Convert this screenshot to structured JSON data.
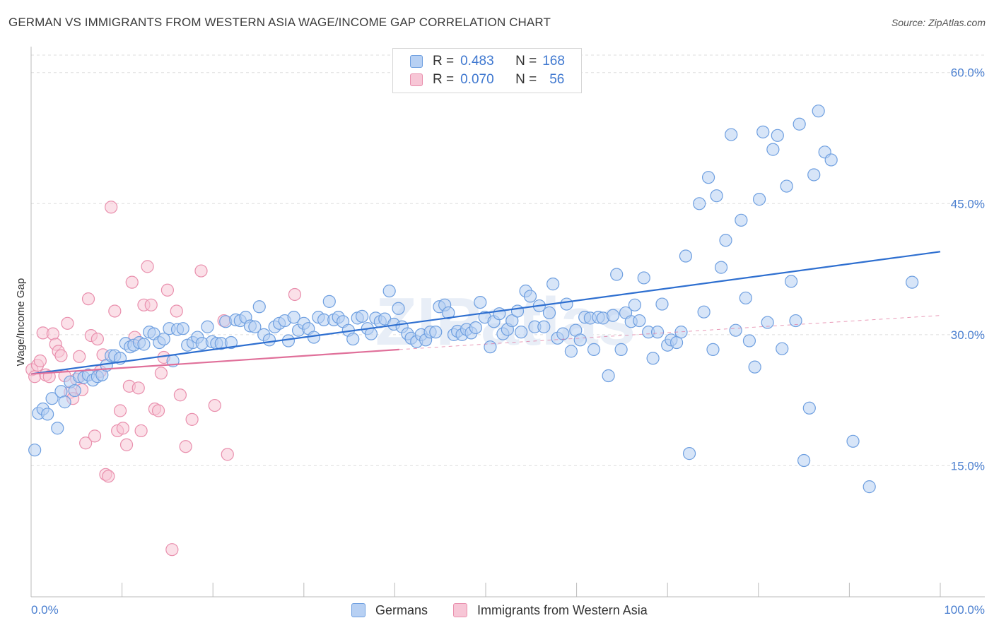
{
  "title": "GERMAN VS IMMIGRANTS FROM WESTERN ASIA WAGE/INCOME GAP CORRELATION CHART",
  "source": "Source: ZipAtlas.com",
  "watermark": "ZIPatlas",
  "legend": {
    "rows": [
      {
        "r_label": "R =",
        "r_value": "0.483",
        "n_label": "N =",
        "n_value": "168"
      },
      {
        "r_label": "R =",
        "r_value": "0.070",
        "n_label": "N =",
        "n_value": "56"
      }
    ]
  },
  "bottom_legend": [
    "Germans",
    "Immigrants from Western Asia"
  ],
  "colors": {
    "blue_fill": "#b7d0f3",
    "blue_stroke": "#6e9fe0",
    "blue_line": "#2e6fd0",
    "pink_fill": "#f7c6d6",
    "pink_stroke": "#e98fad",
    "pink_line": "#e0709a",
    "grid": "#dddddd",
    "tick_text": "#4a7fd0"
  },
  "chart_data": {
    "type": "scatter",
    "title": "GERMAN VS IMMIGRANTS FROM WESTERN ASIA WAGE/INCOME GAP CORRELATION CHART",
    "xlabel": "",
    "ylabel": "Wage/Income Gap",
    "xlim": [
      0,
      100
    ],
    "ylim": [
      0,
      62
    ],
    "x_tick_labels": [
      "0.0%",
      "100.0%"
    ],
    "y_ticks": [
      15,
      30,
      45,
      60
    ],
    "y_tick_labels": [
      "15.0%",
      "30.0%",
      "45.0%",
      "60.0%"
    ],
    "grid": true,
    "legend_position": "top-center",
    "series": [
      {
        "name": "Germans",
        "r": 0.483,
        "n": 168,
        "trend": {
          "x": [
            0,
            100
          ],
          "y": [
            25.5,
            39.5
          ],
          "style": "solid"
        },
        "points": [
          [
            0.4,
            16.8
          ],
          [
            0.8,
            21.0
          ],
          [
            1.3,
            21.5
          ],
          [
            1.8,
            20.9
          ],
          [
            2.3,
            22.7
          ],
          [
            2.9,
            19.3
          ],
          [
            3.3,
            23.5
          ],
          [
            3.7,
            22.3
          ],
          [
            4.3,
            24.6
          ],
          [
            4.8,
            23.6
          ],
          [
            5.3,
            25.2
          ],
          [
            5.8,
            25.1
          ],
          [
            6.3,
            25.4
          ],
          [
            6.8,
            24.8
          ],
          [
            7.3,
            25.2
          ],
          [
            7.8,
            25.4
          ],
          [
            8.3,
            26.5
          ],
          [
            8.8,
            27.6
          ],
          [
            9.2,
            27.6
          ],
          [
            9.8,
            27.3
          ],
          [
            10.4,
            29.0
          ],
          [
            10.9,
            28.6
          ],
          [
            11.3,
            28.8
          ],
          [
            11.9,
            29.1
          ],
          [
            12.4,
            28.9
          ],
          [
            13.0,
            30.3
          ],
          [
            13.5,
            30.1
          ],
          [
            14.1,
            29.1
          ],
          [
            14.6,
            29.5
          ],
          [
            15.2,
            30.7
          ],
          [
            15.6,
            27.0
          ],
          [
            16.1,
            30.6
          ],
          [
            16.7,
            30.7
          ],
          [
            17.2,
            28.8
          ],
          [
            17.8,
            29.1
          ],
          [
            18.3,
            29.7
          ],
          [
            18.8,
            29.0
          ],
          [
            19.4,
            30.9
          ],
          [
            19.9,
            29.2
          ],
          [
            20.4,
            29.0
          ],
          [
            20.9,
            29.0
          ],
          [
            21.4,
            31.5
          ],
          [
            22.0,
            29.1
          ],
          [
            22.5,
            31.7
          ],
          [
            23.0,
            31.6
          ],
          [
            23.6,
            32.0
          ],
          [
            24.1,
            31.0
          ],
          [
            24.6,
            30.9
          ],
          [
            25.1,
            33.2
          ],
          [
            25.6,
            30.0
          ],
          [
            26.2,
            29.4
          ],
          [
            26.8,
            30.9
          ],
          [
            27.3,
            31.3
          ],
          [
            27.9,
            31.6
          ],
          [
            28.3,
            29.3
          ],
          [
            28.9,
            32.0
          ],
          [
            29.4,
            30.5
          ],
          [
            30.0,
            31.3
          ],
          [
            30.5,
            30.7
          ],
          [
            31.1,
            29.7
          ],
          [
            31.6,
            32.0
          ],
          [
            32.2,
            31.7
          ],
          [
            32.8,
            33.8
          ],
          [
            33.3,
            31.7
          ],
          [
            33.8,
            32.0
          ],
          [
            34.3,
            31.5
          ],
          [
            34.9,
            30.5
          ],
          [
            35.4,
            29.5
          ],
          [
            35.9,
            31.9
          ],
          [
            36.4,
            32.1
          ],
          [
            37.0,
            30.7
          ],
          [
            37.4,
            30.1
          ],
          [
            37.9,
            31.9
          ],
          [
            38.4,
            31.5
          ],
          [
            38.9,
            31.8
          ],
          [
            39.4,
            35.0
          ],
          [
            39.9,
            31.2
          ],
          [
            40.4,
            33.0
          ],
          [
            40.8,
            30.9
          ],
          [
            41.4,
            30.1
          ],
          [
            41.8,
            29.6
          ],
          [
            42.4,
            29.2
          ],
          [
            42.9,
            30.0
          ],
          [
            43.4,
            29.4
          ],
          [
            43.9,
            30.3
          ],
          [
            44.5,
            30.3
          ],
          [
            44.9,
            33.2
          ],
          [
            45.5,
            33.4
          ],
          [
            45.9,
            32.5
          ],
          [
            46.5,
            30.0
          ],
          [
            46.9,
            30.4
          ],
          [
            47.4,
            30.0
          ],
          [
            47.9,
            30.6
          ],
          [
            48.4,
            30.2
          ],
          [
            48.9,
            30.8
          ],
          [
            49.4,
            33.7
          ],
          [
            49.9,
            32.0
          ],
          [
            50.5,
            28.6
          ],
          [
            50.9,
            31.5
          ],
          [
            51.5,
            32.4
          ],
          [
            51.9,
            30.1
          ],
          [
            52.4,
            30.6
          ],
          [
            52.9,
            31.6
          ],
          [
            53.5,
            32.7
          ],
          [
            53.9,
            30.3
          ],
          [
            54.4,
            35.0
          ],
          [
            54.9,
            34.4
          ],
          [
            55.4,
            30.9
          ],
          [
            55.9,
            33.3
          ],
          [
            56.4,
            30.9
          ],
          [
            57.0,
            32.5
          ],
          [
            57.4,
            35.8
          ],
          [
            57.9,
            29.6
          ],
          [
            58.5,
            30.1
          ],
          [
            58.9,
            33.5
          ],
          [
            59.4,
            28.1
          ],
          [
            59.9,
            30.5
          ],
          [
            60.4,
            29.4
          ],
          [
            60.9,
            32.0
          ],
          [
            61.5,
            31.9
          ],
          [
            61.9,
            28.3
          ],
          [
            62.4,
            32.0
          ],
          [
            62.9,
            31.9
          ],
          [
            63.5,
            25.3
          ],
          [
            64.0,
            32.2
          ],
          [
            64.4,
            36.9
          ],
          [
            64.9,
            28.3
          ],
          [
            65.4,
            32.5
          ],
          [
            66.0,
            31.5
          ],
          [
            66.4,
            33.4
          ],
          [
            66.9,
            31.6
          ],
          [
            67.4,
            36.5
          ],
          [
            67.9,
            30.3
          ],
          [
            68.4,
            27.3
          ],
          [
            68.9,
            30.3
          ],
          [
            69.4,
            33.5
          ],
          [
            70.0,
            28.8
          ],
          [
            70.4,
            29.4
          ],
          [
            71.0,
            29.1
          ],
          [
            71.5,
            30.3
          ],
          [
            72.0,
            39.0
          ],
          [
            72.4,
            16.4
          ],
          [
            73.5,
            45.0
          ],
          [
            74.0,
            32.6
          ],
          [
            74.5,
            48.0
          ],
          [
            75.0,
            28.3
          ],
          [
            75.4,
            45.9
          ],
          [
            75.9,
            37.7
          ],
          [
            76.4,
            40.8
          ],
          [
            77.0,
            52.9
          ],
          [
            77.5,
            30.5
          ],
          [
            78.1,
            43.1
          ],
          [
            78.6,
            34.2
          ],
          [
            79.0,
            29.3
          ],
          [
            79.6,
            26.3
          ],
          [
            80.1,
            45.5
          ],
          [
            80.5,
            53.2
          ],
          [
            81.0,
            31.4
          ],
          [
            81.6,
            51.2
          ],
          [
            82.1,
            52.8
          ],
          [
            82.6,
            28.4
          ],
          [
            83.1,
            47.0
          ],
          [
            83.6,
            36.1
          ],
          [
            84.1,
            31.6
          ],
          [
            84.5,
            54.1
          ],
          [
            85.0,
            15.6
          ],
          [
            85.6,
            21.6
          ],
          [
            86.1,
            48.3
          ],
          [
            86.6,
            55.6
          ],
          [
            87.3,
            50.9
          ],
          [
            88.0,
            50.0
          ],
          [
            90.4,
            17.8
          ],
          [
            92.2,
            12.6
          ],
          [
            96.9,
            36.0
          ]
        ]
      },
      {
        "name": "Immigrants from Western Asia",
        "r": 0.07,
        "n": 56,
        "trend": {
          "x": [
            0,
            40.5
          ],
          "y": [
            25.5,
            28.3
          ],
          "style": "solid",
          "dashed_extension_to": [
            100,
            32.2
          ]
        },
        "points": [
          [
            0.1,
            26.0
          ],
          [
            0.4,
            25.2
          ],
          [
            0.7,
            26.5
          ],
          [
            1.0,
            27.0
          ],
          [
            1.3,
            30.2
          ],
          [
            1.6,
            25.4
          ],
          [
            2.0,
            25.2
          ],
          [
            2.4,
            30.1
          ],
          [
            2.7,
            28.9
          ],
          [
            3.0,
            28.1
          ],
          [
            3.3,
            27.6
          ],
          [
            3.7,
            25.3
          ],
          [
            4.0,
            31.3
          ],
          [
            4.3,
            23.4
          ],
          [
            4.6,
            22.7
          ],
          [
            5.0,
            24.9
          ],
          [
            5.3,
            27.5
          ],
          [
            5.6,
            23.7
          ],
          [
            6.0,
            17.6
          ],
          [
            6.3,
            34.1
          ],
          [
            6.6,
            29.9
          ],
          [
            7.0,
            18.4
          ],
          [
            7.3,
            29.5
          ],
          [
            7.6,
            25.8
          ],
          [
            7.9,
            27.7
          ],
          [
            8.2,
            14.0
          ],
          [
            8.5,
            13.8
          ],
          [
            8.8,
            44.6
          ],
          [
            9.2,
            32.7
          ],
          [
            9.5,
            19.0
          ],
          [
            9.8,
            21.3
          ],
          [
            10.1,
            19.3
          ],
          [
            10.5,
            17.4
          ],
          [
            10.8,
            24.1
          ],
          [
            11.1,
            36.0
          ],
          [
            11.4,
            29.7
          ],
          [
            11.8,
            23.9
          ],
          [
            12.1,
            19.0
          ],
          [
            12.4,
            33.4
          ],
          [
            12.8,
            37.8
          ],
          [
            13.2,
            33.4
          ],
          [
            13.6,
            21.5
          ],
          [
            14.0,
            21.3
          ],
          [
            14.3,
            25.6
          ],
          [
            14.6,
            27.4
          ],
          [
            15.0,
            35.1
          ],
          [
            15.5,
            5.4
          ],
          [
            16.0,
            32.7
          ],
          [
            16.4,
            23.1
          ],
          [
            17.0,
            17.2
          ],
          [
            17.7,
            20.3
          ],
          [
            18.7,
            37.3
          ],
          [
            20.2,
            21.9
          ],
          [
            21.2,
            31.6
          ],
          [
            21.6,
            16.3
          ],
          [
            29.0,
            34.6
          ]
        ]
      }
    ]
  }
}
